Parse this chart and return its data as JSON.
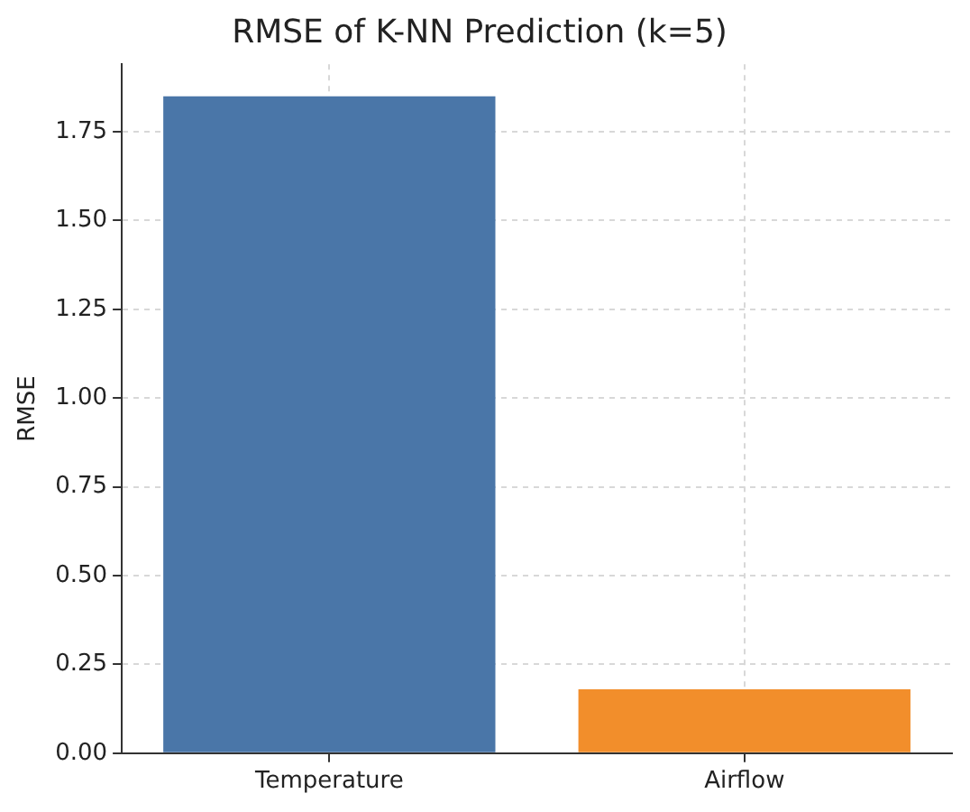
{
  "chart_data": {
    "type": "bar",
    "title": "RMSE of K-NN Prediction (k=5)",
    "ylabel": "RMSE",
    "categories": [
      "Temperature",
      "Airflow"
    ],
    "values": [
      1.85,
      0.18
    ],
    "colors": [
      "#4a76a8",
      "#f28e2b"
    ],
    "ylim": [
      0,
      1.94
    ],
    "yticks": [
      {
        "value": 0,
        "label": "0.00"
      },
      {
        "value": 0.25,
        "label": "0.25"
      },
      {
        "value": 0.5,
        "label": "0.50"
      },
      {
        "value": 0.75,
        "label": "0.75"
      },
      {
        "value": 1,
        "label": "1.00"
      },
      {
        "value": 1.25,
        "label": "1.25"
      },
      {
        "value": 1.5,
        "label": "1.50"
      },
      {
        "value": 1.75,
        "label": "1.75"
      }
    ],
    "grid": true
  }
}
